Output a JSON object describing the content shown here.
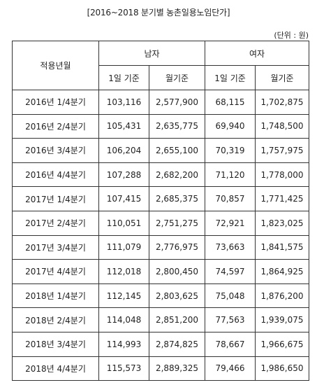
{
  "title": "[2016~2018 분기별 농촌일용노임단가]",
  "unit": "(단위 : 원)",
  "header": {
    "period": "적용년월",
    "male": "남자",
    "female": "여자",
    "daily": "1일 기준",
    "monthly": "월기준"
  },
  "rows": [
    {
      "period": "2016년 1/4분기",
      "male_daily": "103,116",
      "male_monthly": "2,577,900",
      "female_daily": "68,115",
      "female_monthly": "1,702,875"
    },
    {
      "period": "2016년 2/4분기",
      "male_daily": "105,431",
      "male_monthly": "2,635,775",
      "female_daily": "69,940",
      "female_monthly": "1,748,500"
    },
    {
      "period": "2016년 3/4분기",
      "male_daily": "106,204",
      "male_monthly": "2,655,100",
      "female_daily": "70,319",
      "female_monthly": "1,757,975"
    },
    {
      "period": "2016년 4/4분기",
      "male_daily": "107,288",
      "male_monthly": "2,682,200",
      "female_daily": "71,120",
      "female_monthly": "1,778,000"
    },
    {
      "period": "2017년 1/4분기",
      "male_daily": "107,415",
      "male_monthly": "2,685,375",
      "female_daily": "70,857",
      "female_monthly": "1,771,425"
    },
    {
      "period": "2017년 2/4분기",
      "male_daily": "110,051",
      "male_monthly": "2,751,275",
      "female_daily": "72,921",
      "female_monthly": "1,823,025"
    },
    {
      "period": "2017년 3/4분기",
      "male_daily": "111,079",
      "male_monthly": "2,776,975",
      "female_daily": "73,663",
      "female_monthly": "1,841,575"
    },
    {
      "period": "2017년 4/4분기",
      "male_daily": "112,018",
      "male_monthly": "2,800,450",
      "female_daily": "74,597",
      "female_monthly": "1,864,925"
    },
    {
      "period": "2018년 1/4분기",
      "male_daily": "112,145",
      "male_monthly": "2,803,625",
      "female_daily": "75,048",
      "female_monthly": "1,876,200"
    },
    {
      "period": "2018년 2/4분기",
      "male_daily": "114,048",
      "male_monthly": "2,851,200",
      "female_daily": "77,563",
      "female_monthly": "1,939,075"
    },
    {
      "period": "2018년 3/4분기",
      "male_daily": "114,993",
      "male_monthly": "2,874,825",
      "female_daily": "78,667",
      "female_monthly": "1,966,675"
    },
    {
      "period": "2018년 4/4분기",
      "male_daily": "115,573",
      "male_monthly": "2,889,325",
      "female_daily": "79,466",
      "female_monthly": "1,986,650"
    }
  ]
}
